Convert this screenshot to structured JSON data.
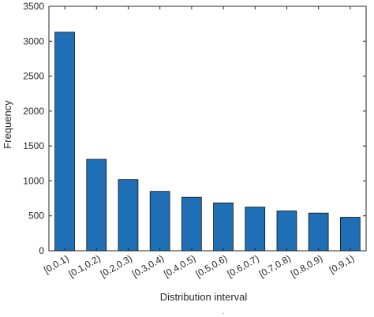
{
  "chart_data": {
    "type": "bar",
    "title": "",
    "xlabel": "Distribution interval",
    "ylabel": "Frequency",
    "categories": [
      "[0,0.1)",
      "[0.1,0.2)",
      "[0.2,0.3)",
      "[0.3,0.4)",
      "[0.4,0.5)",
      "[0.5,0.6)",
      "[0.6,0.7)",
      "[0.7,0.8)",
      "[0.8,0.9)",
      "[0.9,1)"
    ],
    "values": [
      3130,
      1310,
      1020,
      850,
      765,
      685,
      625,
      570,
      540,
      480
    ],
    "ylim": [
      0,
      3500
    ],
    "yticks": [
      "0",
      "500",
      "1000",
      "1500",
      "2000",
      "2500",
      "3000",
      "3500"
    ],
    "grid": false,
    "bar_color": "#1f6fb7",
    "bar_edge_color": "#111111"
  },
  "footer_mark": "-"
}
